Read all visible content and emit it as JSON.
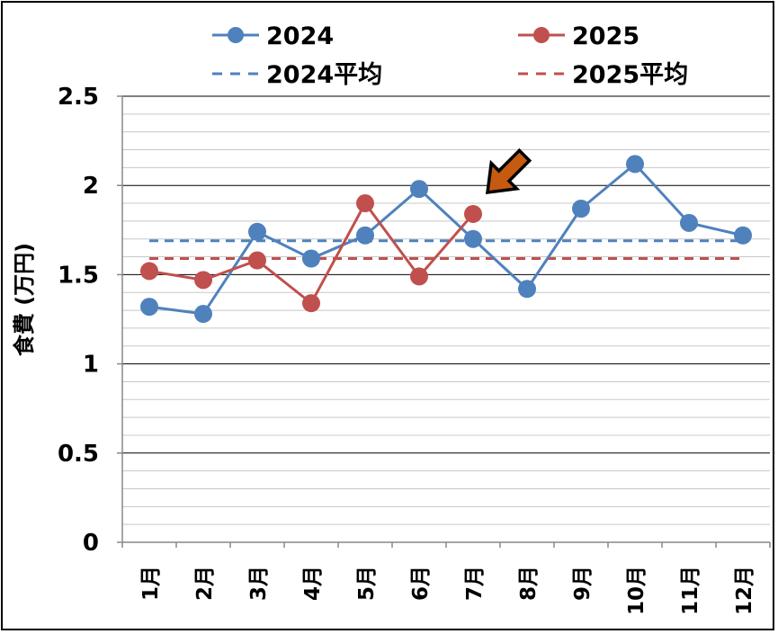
{
  "chart_data": {
    "type": "line",
    "ylabel": "食費 (万円)",
    "ylim": [
      0,
      2.5
    ],
    "yticks": [
      "0",
      "0.5",
      "1",
      "1.5",
      "2",
      "2.5"
    ],
    "y_major_step": 0.5,
    "y_minor_step": 0.1,
    "categories": [
      "1月",
      "2月",
      "3月",
      "4月",
      "5月",
      "6月",
      "7月",
      "8月",
      "9月",
      "10月",
      "11月",
      "12月"
    ],
    "series": [
      {
        "name": "2024",
        "color": "#4f81bd",
        "style": "solid-markers",
        "values": [
          1.32,
          1.28,
          1.74,
          1.59,
          1.72,
          1.98,
          1.7,
          1.42,
          1.87,
          2.12,
          1.79,
          1.72
        ]
      },
      {
        "name": "2025",
        "color": "#c0504d",
        "style": "solid-markers",
        "values": [
          1.52,
          1.47,
          1.58,
          1.34,
          1.9,
          1.49,
          1.84,
          null,
          null,
          null,
          null,
          null
        ]
      },
      {
        "name": "2024平均",
        "color": "#4f81bd",
        "style": "dashed",
        "values": [
          1.69,
          1.69,
          1.69,
          1.69,
          1.69,
          1.69,
          1.69,
          1.69,
          1.69,
          1.69,
          1.69,
          1.69
        ]
      },
      {
        "name": "2025平均",
        "color": "#c0504d",
        "style": "dashed",
        "values": [
          1.59,
          1.59,
          1.59,
          1.59,
          1.59,
          1.59,
          1.59,
          1.59,
          1.59,
          1.59,
          1.59,
          1.59
        ]
      }
    ],
    "legend_position": "top",
    "grid": true,
    "annotation": {
      "type": "arrow",
      "color": "#c55a11",
      "points_to": "7月 2025"
    }
  }
}
